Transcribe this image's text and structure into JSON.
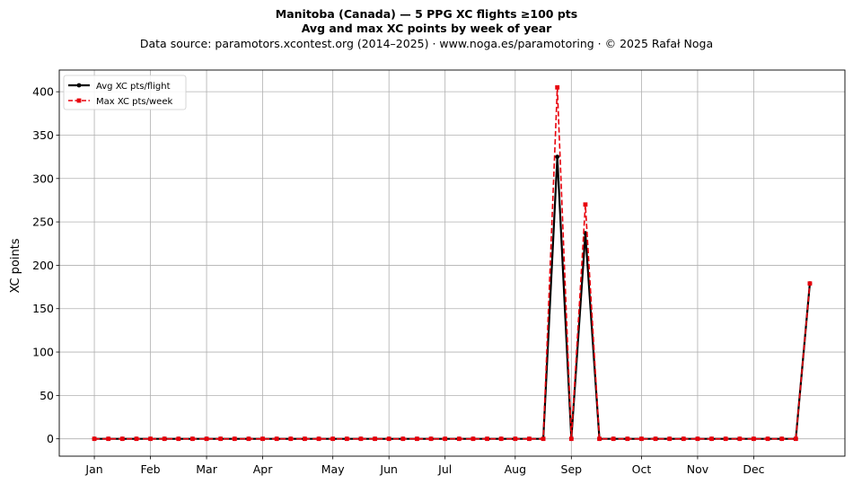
{
  "title": "Manitoba (Canada)  —  5 PPG XC flights ≥100 pts",
  "subtitle": "Avg and max XC points by week of year",
  "source_line": "Data source: paramotors.xcontest.org (2014–2025)  ·  www.noga.es/paramotoring  ·  © 2025 Rafał Noga",
  "chart_data": {
    "type": "line",
    "title": "Manitoba (Canada)  —  5 PPG XC flights ≥100 pts",
    "subtitle": "Avg and max XC points by week of year",
    "xlabel": "",
    "ylabel": "XC points",
    "x_unit": "week of year",
    "x": [
      1,
      2,
      3,
      4,
      5,
      6,
      7,
      8,
      9,
      10,
      11,
      12,
      13,
      14,
      15,
      16,
      17,
      18,
      19,
      20,
      21,
      22,
      23,
      24,
      25,
      26,
      27,
      28,
      29,
      30,
      31,
      32,
      33,
      34,
      35,
      36,
      37,
      38,
      39,
      40,
      41,
      42,
      43,
      44,
      45,
      46,
      47,
      48,
      49,
      50,
      51,
      52
    ],
    "month_ticks": [
      {
        "label": "Jan",
        "week": 1
      },
      {
        "label": "Feb",
        "week": 5
      },
      {
        "label": "Mar",
        "week": 9
      },
      {
        "label": "Apr",
        "week": 13
      },
      {
        "label": "May",
        "week": 18
      },
      {
        "label": "Jun",
        "week": 22
      },
      {
        "label": "Jul",
        "week": 26
      },
      {
        "label": "Aug",
        "week": 31
      },
      {
        "label": "Sep",
        "week": 35
      },
      {
        "label": "Oct",
        "week": 40
      },
      {
        "label": "Nov",
        "week": 44
      },
      {
        "label": "Dec",
        "week": 48
      }
    ],
    "yticks": [
      0,
      50,
      100,
      150,
      200,
      250,
      300,
      350,
      400
    ],
    "ylim": [
      -20,
      425
    ],
    "xlim": [
      -1.5,
      54.5
    ],
    "grid": true,
    "legend_position": "top-left",
    "series": [
      {
        "name": "Avg XC pts/flight",
        "color": "#000000",
        "style": "solid",
        "marker": "circle",
        "values": [
          0,
          0,
          0,
          0,
          0,
          0,
          0,
          0,
          0,
          0,
          0,
          0,
          0,
          0,
          0,
          0,
          0,
          0,
          0,
          0,
          0,
          0,
          0,
          0,
          0,
          0,
          0,
          0,
          0,
          0,
          0,
          0,
          0,
          325,
          0,
          237,
          0,
          0,
          0,
          0,
          0,
          0,
          0,
          0,
          0,
          0,
          0,
          0,
          0,
          0,
          0,
          179
        ]
      },
      {
        "name": "Max XC pts/week",
        "color": "#e8000b",
        "style": "dashed",
        "marker": "square",
        "values": [
          0,
          0,
          0,
          0,
          0,
          0,
          0,
          0,
          0,
          0,
          0,
          0,
          0,
          0,
          0,
          0,
          0,
          0,
          0,
          0,
          0,
          0,
          0,
          0,
          0,
          0,
          0,
          0,
          0,
          0,
          0,
          0,
          0,
          405,
          0,
          270,
          0,
          0,
          0,
          0,
          0,
          0,
          0,
          0,
          0,
          0,
          0,
          0,
          0,
          0,
          0,
          179
        ]
      }
    ]
  }
}
